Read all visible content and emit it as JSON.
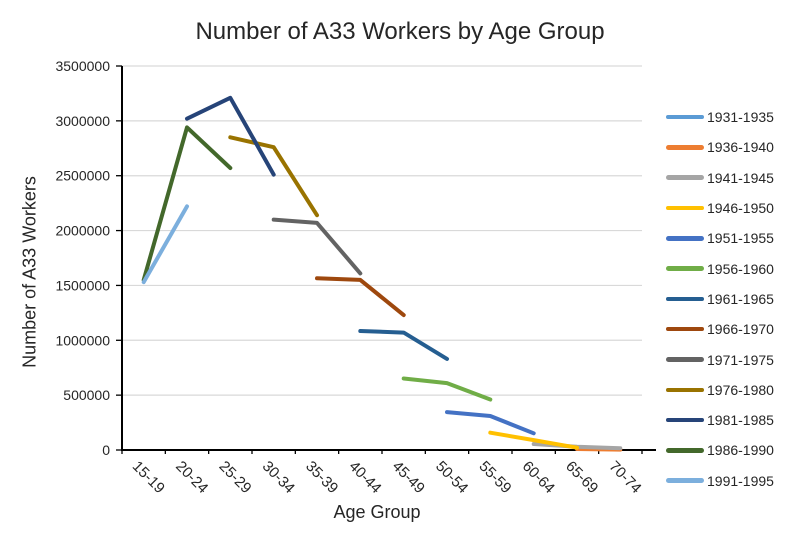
{
  "chart": {
    "background": "#ffffff",
    "axis_color": "#000000",
    "gridline_color": "#d9d9d9",
    "text_color": "#262626"
  },
  "chart_data": {
    "type": "line",
    "title": "Number of A33 Workers by Age Group",
    "xlabel": "Age Group",
    "ylabel": "Number of A33 Workers",
    "categories": [
      "15-19",
      "20-24",
      "25-29",
      "30-34",
      "35-39",
      "40-44",
      "45-49",
      "50-54",
      "55-59",
      "60-64",
      "65-69",
      "70-74"
    ],
    "ylim": [
      0,
      3500000
    ],
    "ytick_step": 500000,
    "grid": true,
    "legend_position": "right",
    "x_label_rotation_deg": 45,
    "series": [
      {
        "name": "1931-1935",
        "color": "#5B9BD5",
        "start_index": 11,
        "values": []
      },
      {
        "name": "1936-1940",
        "color": "#ED7D31",
        "start_index": 10,
        "values": [
          9000,
          4000
        ]
      },
      {
        "name": "1941-1945",
        "color": "#A5A5A5",
        "start_index": 9,
        "values": [
          55000,
          30000,
          16000
        ]
      },
      {
        "name": "1946-1950",
        "color": "#FFC000",
        "start_index": 8,
        "values": [
          158000,
          90000,
          21000
        ]
      },
      {
        "name": "1951-1955",
        "color": "#4472C4",
        "start_index": 7,
        "values": [
          345000,
          310000,
          152000
        ]
      },
      {
        "name": "1956-1960",
        "color": "#70AD47",
        "start_index": 6,
        "values": [
          652000,
          610000,
          460000
        ]
      },
      {
        "name": "1961-1965",
        "color": "#255E91",
        "start_index": 5,
        "values": [
          1085000,
          1070000,
          830000
        ]
      },
      {
        "name": "1966-1970",
        "color": "#9E480E",
        "start_index": 4,
        "values": [
          1565000,
          1550000,
          1230000
        ]
      },
      {
        "name": "1971-1975",
        "color": "#636363",
        "start_index": 3,
        "values": [
          2100000,
          2070000,
          1610000
        ]
      },
      {
        "name": "1976-1980",
        "color": "#997300",
        "start_index": 2,
        "values": [
          2850000,
          2760000,
          2140000
        ]
      },
      {
        "name": "1981-1985",
        "color": "#264478",
        "start_index": 1,
        "values": [
          3020000,
          3210000,
          2510000
        ]
      },
      {
        "name": "1986-1990",
        "color": "#43682B",
        "start_index": 0,
        "values": [
          1550000,
          2940000,
          2570000
        ]
      },
      {
        "name": "1991-1995",
        "color": "#7CAFDD",
        "start_index": 0,
        "values": [
          1530000,
          2220000
        ]
      }
    ]
  }
}
